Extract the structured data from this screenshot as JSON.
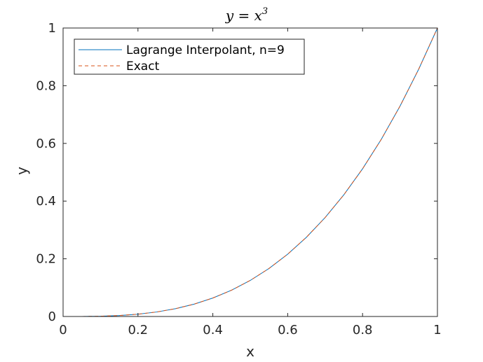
{
  "chart_data": {
    "type": "line",
    "title": "y = x3",
    "title_base": "y = x",
    "title_exponent": "3",
    "xlabel": "x",
    "ylabel": "y",
    "xlim": [
      0,
      1
    ],
    "ylim": [
      0,
      1
    ],
    "xticks": [
      0,
      0.2,
      0.4,
      0.6,
      0.8,
      1
    ],
    "xtick_labels": [
      "0",
      "0.2",
      "0.4",
      "0.6",
      "0.8",
      "1"
    ],
    "yticks": [
      0,
      0.2,
      0.4,
      0.6,
      0.8,
      1
    ],
    "ytick_labels": [
      "0",
      "0.2",
      "0.4",
      "0.6",
      "0.8",
      "1"
    ],
    "grid": false,
    "legend_position": "top-left",
    "x": [
      0,
      0.05,
      0.1,
      0.15,
      0.2,
      0.25,
      0.3,
      0.35,
      0.4,
      0.45,
      0.5,
      0.55,
      0.6,
      0.65,
      0.7,
      0.75,
      0.8,
      0.85,
      0.9,
      0.95,
      1
    ],
    "series": [
      {
        "name": "Lagrange Interpolant, n=9",
        "color": "#0072BD",
        "style": "solid",
        "values": [
          0,
          0.000125,
          0.001,
          0.003375,
          0.008,
          0.015625,
          0.027,
          0.042875,
          0.064,
          0.091125,
          0.125,
          0.166375,
          0.216,
          0.274625,
          0.343,
          0.421875,
          0.512,
          0.614125,
          0.729,
          0.857375,
          1
        ]
      },
      {
        "name": "Exact",
        "color": "#D95319",
        "style": "dashed",
        "values": [
          0,
          0.000125,
          0.001,
          0.003375,
          0.008,
          0.015625,
          0.027,
          0.042875,
          0.064,
          0.091125,
          0.125,
          0.166375,
          0.216,
          0.274625,
          0.343,
          0.421875,
          0.512,
          0.614125,
          0.729,
          0.857375,
          1
        ]
      }
    ]
  }
}
